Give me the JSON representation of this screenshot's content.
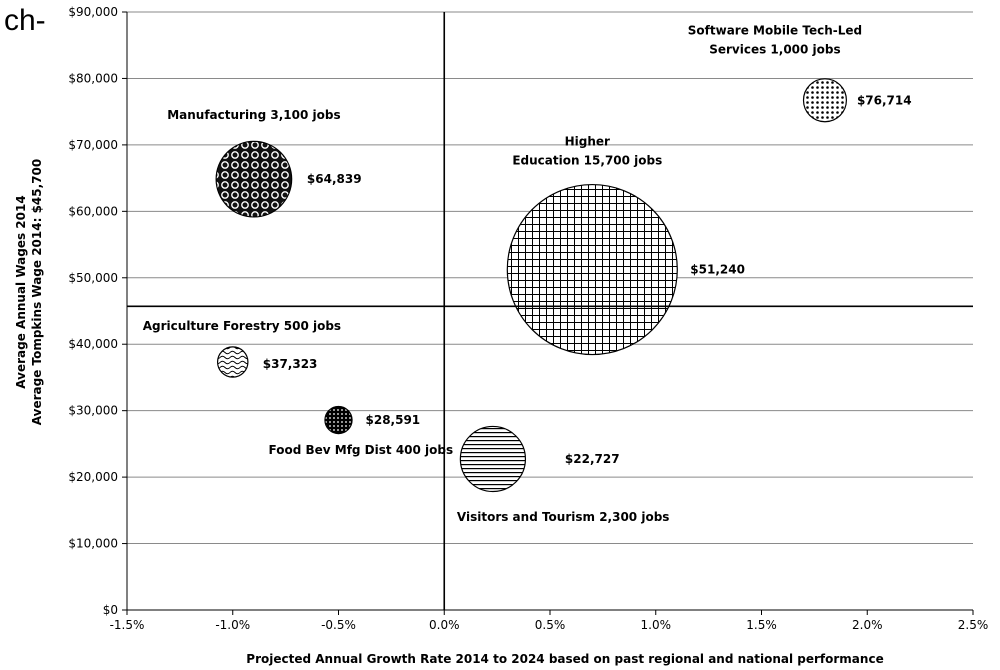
{
  "page_fragment": "ch-",
  "chart_data": {
    "type": "bubble",
    "xlabel": "Projected  Annual Growth Rate 2014 to 2024 based on past regional and national performance",
    "ylabel_line1": "Average Annual Wages 2014",
    "ylabel_line2": "Average Tompkins Wage 2014: $45,700",
    "xlim": [
      -1.5,
      2.5
    ],
    "ylim": [
      0,
      90000
    ],
    "x_ticks": [
      {
        "v": -1.5,
        "label": "-1.5%"
      },
      {
        "v": -1.0,
        "label": "-1.0%"
      },
      {
        "v": -0.5,
        "label": "-0.5%"
      },
      {
        "v": 0.0,
        "label": "0.0%"
      },
      {
        "v": 0.5,
        "label": "0.5%"
      },
      {
        "v": 1.0,
        "label": "1.0%"
      },
      {
        "v": 1.5,
        "label": "1.5%"
      },
      {
        "v": 2.0,
        "label": "2.0%"
      },
      {
        "v": 2.5,
        "label": "2.5%"
      }
    ],
    "y_ticks": [
      {
        "v": 0,
        "label": "$0"
      },
      {
        "v": 10000,
        "label": "$10,000"
      },
      {
        "v": 20000,
        "label": "$20,000"
      },
      {
        "v": 30000,
        "label": "$30,000"
      },
      {
        "v": 40000,
        "label": "$40,000"
      },
      {
        "v": 50000,
        "label": "$50,000"
      },
      {
        "v": 60000,
        "label": "$60,000"
      },
      {
        "v": 70000,
        "label": "$70,000"
      },
      {
        "v": 80000,
        "label": "$80,000"
      },
      {
        "v": 90000,
        "label": "$90,000"
      }
    ],
    "reference_lines": {
      "vertical_x": 0.0,
      "horizontal_y": 45700
    },
    "grid": true,
    "bubbles": [
      {
        "name": "Manufacturing 3,100 jobs",
        "name_lines": [
          "Manufacturing 3,100 jobs"
        ],
        "x": -0.9,
        "y": 64839,
        "jobs": 3100,
        "value_label": "$64,839",
        "pattern": "circles"
      },
      {
        "name": "Software Mobile Tech-Led Services 1,000 jobs",
        "name_lines": [
          "Software Mobile Tech-Led",
          "Services 1,000 jobs"
        ],
        "x": 1.8,
        "y": 76714,
        "jobs": 1000,
        "value_label": "$76,714",
        "pattern": "dots"
      },
      {
        "name": "Higher Education 15,700 jobs",
        "name_lines": [
          "Higher",
          "Education 15,700 jobs"
        ],
        "x": 0.7,
        "y": 51240,
        "jobs": 15700,
        "value_label": "$51,240",
        "pattern": "grid"
      },
      {
        "name": "Agriculture Forestry 500 jobs",
        "name_lines": [
          "Agriculture Forestry 500 jobs"
        ],
        "x": -1.0,
        "y": 37323,
        "jobs": 500,
        "value_label": "$37,323",
        "pattern": "waves"
      },
      {
        "name": "Food Bev Mfg Dist 400 jobs",
        "name_lines": [
          "Food Bev Mfg Dist 400 jobs"
        ],
        "x": -0.5,
        "y": 28591,
        "jobs": 400,
        "value_label": "$28,591",
        "pattern": "dense"
      },
      {
        "name": "Visitors and Tourism 2,300 jobs",
        "name_lines": [
          "Visitors and Tourism 2,300 jobs"
        ],
        "x": 0.23,
        "y": 22727,
        "jobs": 2300,
        "value_label": "$22,727",
        "pattern": "hlines"
      }
    ]
  }
}
